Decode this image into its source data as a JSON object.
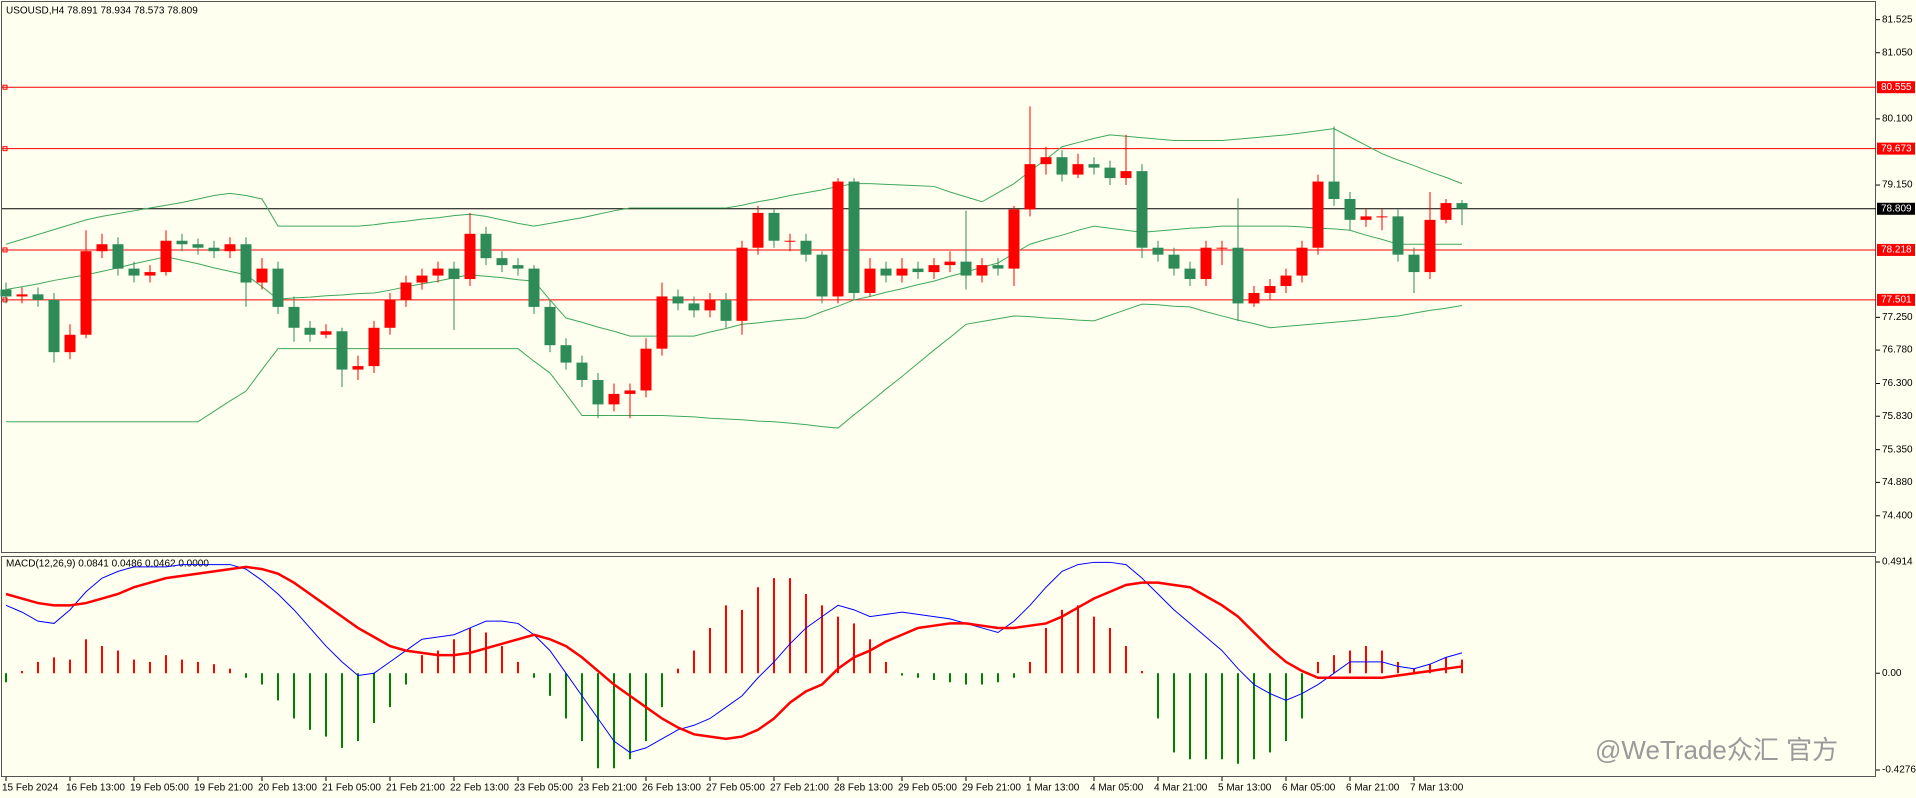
{
  "watermark": "@WeTrade众汇 官方",
  "chart_data": [
    {
      "type": "candlestick",
      "title": "USOUSD,H4  78.891 78.934 78.573 78.809",
      "categories": [
        "15 Feb 2024",
        null,
        null,
        null,
        "16 Feb 13:00",
        null,
        null,
        null,
        "19 Feb 05:00",
        null,
        null,
        null,
        "19 Feb 21:00",
        null,
        null,
        null,
        "20 Feb 13:00",
        null,
        null,
        null,
        "21 Feb 05:00",
        null,
        null,
        null,
        "21 Feb 21:00",
        null,
        null,
        null,
        "22 Feb 13:00",
        null,
        null,
        null,
        "23 Feb 05:00",
        null,
        null,
        null,
        "23 Feb 21:00",
        null,
        null,
        null,
        "26 Feb 13:00",
        null,
        null,
        null,
        "27 Feb 05:00",
        null,
        null,
        null,
        "27 Feb 21:00",
        null,
        null,
        null,
        "28 Feb 13:00",
        null,
        null,
        null,
        "29 Feb 05:00",
        null,
        null,
        null,
        "29 Feb 21:00",
        null,
        null,
        null,
        "1 Mar 13:00",
        null,
        null,
        null,
        "4 Mar 05:00",
        null,
        null,
        null,
        "4 Mar 21:00",
        null,
        null,
        null,
        "5 Mar 13:00",
        null,
        null,
        null,
        "6 Mar 05:00",
        null,
        null,
        null,
        "6 Mar 21:00",
        null,
        null,
        null,
        "7 Mar 13:00",
        null,
        null,
        null
      ],
      "open": [
        77.65,
        77.55,
        77.58,
        77.5,
        76.75,
        77.0,
        78.2,
        78.3,
        77.95,
        77.85,
        77.9,
        78.35,
        78.3,
        78.25,
        78.2,
        78.3,
        77.75,
        77.95,
        77.4,
        77.1,
        77.0,
        77.05,
        76.5,
        76.55,
        77.1,
        77.5,
        77.75,
        77.85,
        77.95,
        77.8,
        78.45,
        78.1,
        78.0,
        77.95,
        77.4,
        76.85,
        76.6,
        76.35,
        76.0,
        76.15,
        76.2,
        76.8,
        77.55,
        77.45,
        77.35,
        77.5,
        77.2,
        78.25,
        78.75,
        78.35,
        78.35,
        78.15,
        77.55,
        79.2,
        77.6,
        77.95,
        77.85,
        77.95,
        77.9,
        78.0,
        78.05,
        77.85,
        78.0,
        77.95,
        78.8,
        79.45,
        79.55,
        79.3,
        79.45,
        79.4,
        79.25,
        79.35,
        78.25,
        78.15,
        77.95,
        77.8,
        78.25,
        78.25,
        77.45,
        77.6,
        77.7,
        77.85,
        78.25,
        79.2,
        78.95,
        78.65,
        78.7,
        78.7,
        78.15,
        77.9,
        78.65,
        78.891
      ],
      "high": [
        77.75,
        77.68,
        77.68,
        77.6,
        77.15,
        78.5,
        78.45,
        78.4,
        78.05,
        78.0,
        78.5,
        78.45,
        78.38,
        78.35,
        78.4,
        78.4,
        78.1,
        78.05,
        77.55,
        77.2,
        77.15,
        77.1,
        76.7,
        77.2,
        77.6,
        77.85,
        77.95,
        78.05,
        78.05,
        78.75,
        78.55,
        78.2,
        78.1,
        78.0,
        77.5,
        76.95,
        76.7,
        76.45,
        76.3,
        76.3,
        76.95,
        77.75,
        77.65,
        77.55,
        77.6,
        77.6,
        78.35,
        78.85,
        78.8,
        78.45,
        78.45,
        78.2,
        79.25,
        79.25,
        78.1,
        78.05,
        78.1,
        78.05,
        78.1,
        78.2,
        78.78,
        78.1,
        78.1,
        78.85,
        80.28,
        79.7,
        79.65,
        79.6,
        79.55,
        79.5,
        79.87,
        79.45,
        78.35,
        78.25,
        78.05,
        78.35,
        78.35,
        78.96,
        77.7,
        77.8,
        77.95,
        78.35,
        79.3,
        79.99,
        79.05,
        78.8,
        78.8,
        78.8,
        78.25,
        79.05,
        78.95,
        78.934
      ],
      "low": [
        77.45,
        77.45,
        77.4,
        76.6,
        76.65,
        76.95,
        78.1,
        77.85,
        77.75,
        77.75,
        77.85,
        78.2,
        78.15,
        78.1,
        78.1,
        77.4,
        77.65,
        77.3,
        76.9,
        76.9,
        76.95,
        76.25,
        76.35,
        76.45,
        77.0,
        77.4,
        77.65,
        77.75,
        77.07,
        77.7,
        78.0,
        77.9,
        77.85,
        77.3,
        76.75,
        76.5,
        76.25,
        75.8,
        75.9,
        75.8,
        76.1,
        76.7,
        77.35,
        77.25,
        77.25,
        77.1,
        77.0,
        78.15,
        78.25,
        78.2,
        78.05,
        77.45,
        77.45,
        77.5,
        77.55,
        77.75,
        77.75,
        77.8,
        77.8,
        77.9,
        77.65,
        77.75,
        77.85,
        77.7,
        78.7,
        79.3,
        79.2,
        79.25,
        79.3,
        79.15,
        79.15,
        78.1,
        78.05,
        77.85,
        77.7,
        77.7,
        78.0,
        77.2,
        77.4,
        77.5,
        77.6,
        77.75,
        78.15,
        78.85,
        78.5,
        78.55,
        78.5,
        78.05,
        77.6,
        77.8,
        78.6,
        78.573
      ],
      "close": [
        77.55,
        77.58,
        77.5,
        76.75,
        77.0,
        78.2,
        78.3,
        77.95,
        77.85,
        77.9,
        78.35,
        78.3,
        78.25,
        78.2,
        78.3,
        77.75,
        77.95,
        77.4,
        77.1,
        77.0,
        77.05,
        76.5,
        76.55,
        77.1,
        77.5,
        77.75,
        77.85,
        77.95,
        77.8,
        78.45,
        78.1,
        78.0,
        77.95,
        77.4,
        76.85,
        76.6,
        76.35,
        76.0,
        76.15,
        76.2,
        76.8,
        77.55,
        77.45,
        77.35,
        77.5,
        77.2,
        78.25,
        78.75,
        78.35,
        78.35,
        78.15,
        77.55,
        79.2,
        77.6,
        77.95,
        77.85,
        77.95,
        77.9,
        78.0,
        78.05,
        77.85,
        78.0,
        77.95,
        78.8,
        79.45,
        79.55,
        79.3,
        79.45,
        79.4,
        79.25,
        79.35,
        78.25,
        78.15,
        77.95,
        77.8,
        78.25,
        78.25,
        77.45,
        77.6,
        77.7,
        77.85,
        78.25,
        79.2,
        78.95,
        78.65,
        78.7,
        78.7,
        78.15,
        77.9,
        78.65,
        78.891,
        78.809
      ],
      "up_color": "#ff0000",
      "down_color": "#2e8b57",
      "series": [
        {
          "color": "#3fa85c",
          "values": [
            78.3,
            78.37,
            78.44,
            78.51,
            78.58,
            78.65,
            78.7,
            78.74,
            78.78,
            78.82,
            78.86,
            78.9,
            78.95,
            79.0,
            79.03,
            79.0,
            78.95,
            78.56,
            78.56,
            78.56,
            78.56,
            78.56,
            78.56,
            78.58,
            78.61,
            78.63,
            78.66,
            78.68,
            78.71,
            78.73,
            78.7,
            78.65,
            78.6,
            78.56,
            78.6,
            78.64,
            78.68,
            78.73,
            78.78,
            78.82,
            78.82,
            78.82,
            78.82,
            78.82,
            78.82,
            78.82,
            78.86,
            78.91,
            78.95,
            79.0,
            79.04,
            79.08,
            79.13,
            79.17,
            79.17,
            79.16,
            79.15,
            79.14,
            79.13,
            79.05,
            78.98,
            78.91,
            79.04,
            79.17,
            79.35,
            79.52,
            79.7,
            79.76,
            79.82,
            79.87,
            79.85,
            79.83,
            79.81,
            79.79,
            79.79,
            79.79,
            79.79,
            79.81,
            79.83,
            79.85,
            79.87,
            79.9,
            79.93,
            79.96,
            79.84,
            79.72,
            79.6,
            79.51,
            79.43,
            79.34,
            79.26,
            79.17
          ]
        },
        {
          "color": "#3fa85c",
          "values": [
            77.65,
            77.69,
            77.73,
            77.78,
            77.82,
            77.86,
            77.91,
            77.96,
            78.02,
            78.07,
            78.12,
            78.07,
            78.02,
            77.96,
            77.91,
            77.86,
            77.69,
            77.51,
            77.53,
            77.54,
            77.56,
            77.57,
            77.59,
            77.6,
            77.64,
            77.69,
            77.73,
            77.77,
            77.82,
            77.86,
            77.84,
            77.82,
            77.79,
            77.77,
            77.5,
            77.24,
            77.18,
            77.11,
            77.05,
            76.98,
            76.98,
            76.98,
            76.98,
            76.98,
            77.04,
            77.09,
            77.15,
            77.17,
            77.2,
            77.22,
            77.24,
            77.33,
            77.41,
            77.5,
            77.55,
            77.61,
            77.66,
            77.72,
            77.77,
            77.84,
            77.9,
            77.97,
            78.03,
            78.17,
            78.3,
            78.37,
            78.43,
            78.5,
            78.56,
            78.53,
            78.5,
            78.47,
            78.49,
            78.51,
            78.53,
            78.54,
            78.56,
            78.56,
            78.56,
            78.56,
            78.56,
            78.55,
            78.53,
            78.52,
            78.5,
            78.43,
            78.37,
            78.3,
            78.3,
            78.3,
            78.3,
            78.3
          ]
        },
        {
          "color": "#3fa85c",
          "values": [
            75.75,
            75.75,
            75.75,
            75.75,
            75.75,
            75.75,
            75.75,
            75.75,
            75.75,
            75.75,
            75.75,
            75.75,
            75.75,
            75.9,
            76.05,
            76.19,
            76.5,
            76.8,
            76.8,
            76.8,
            76.8,
            76.8,
            76.8,
            76.8,
            76.8,
            76.8,
            76.8,
            76.8,
            76.8,
            76.8,
            76.8,
            76.8,
            76.8,
            76.62,
            76.45,
            76.15,
            75.84,
            75.84,
            75.84,
            75.84,
            75.84,
            75.84,
            75.83,
            75.82,
            75.8,
            75.79,
            75.78,
            75.76,
            75.75,
            75.73,
            75.71,
            75.68,
            75.66,
            75.85,
            76.03,
            76.22,
            76.4,
            76.59,
            76.78,
            76.96,
            77.15,
            77.19,
            77.23,
            77.27,
            77.26,
            77.24,
            77.23,
            77.21,
            77.2,
            77.28,
            77.36,
            77.44,
            77.43,
            77.41,
            77.4,
            77.33,
            77.27,
            77.21,
            77.16,
            77.1,
            77.12,
            77.14,
            77.16,
            77.18,
            77.2,
            77.22,
            77.25,
            77.27,
            77.31,
            77.35,
            77.38,
            77.42
          ]
        }
      ],
      "hlines": [
        80.555,
        79.673,
        78.218,
        77.501
      ],
      "hline_color": "#ff0000",
      "price_line": 78.809,
      "price_line_color": "#000000",
      "ylim": [
        73.88,
        81.75
      ],
      "yticks": [
        81.525,
        {
          "value": 81.05,
          "label": "81.050"
        },
        {
          "value": 80.1,
          "label": "80.100"
        },
        {
          "value": 79.15,
          "label": "79.150"
        },
        {
          "value": 77.25,
          "label": "77.250"
        },
        {
          "value": 76.78,
          "label": "76.780"
        },
        {
          "value": 76.3,
          "label": "76.300"
        },
        {
          "value": 75.83,
          "label": "75.830"
        },
        {
          "value": 75.35,
          "label": "75.350"
        },
        {
          "value": 74.88,
          "label": "74.880"
        },
        {
          "value": 74.4,
          "label": "74.400"
        }
      ]
    },
    {
      "type": "macd",
      "title": "MACD(12,26,9) 0.0841 0.0486 0.0462 0.0000",
      "histogram": [
        -0.04,
        0.01,
        0.05,
        0.07,
        0.06,
        0.15,
        0.12,
        0.1,
        0.06,
        0.05,
        0.08,
        0.06,
        0.05,
        0.04,
        0.02,
        -0.02,
        -0.05,
        -0.12,
        -0.2,
        -0.25,
        -0.28,
        -0.33,
        -0.3,
        -0.22,
        -0.15,
        -0.05,
        0.08,
        0.1,
        0.15,
        0.2,
        0.18,
        0.12,
        0.05,
        -0.02,
        -0.1,
        -0.2,
        -0.3,
        -0.42,
        -0.42,
        -0.38,
        -0.3,
        -0.15,
        0.02,
        0.1,
        0.2,
        0.3,
        0.28,
        0.38,
        0.42,
        0.42,
        0.35,
        0.3,
        0.25,
        0.22,
        0.15,
        0.05,
        -0.01,
        -0.02,
        -0.03,
        -0.04,
        -0.05,
        -0.05,
        -0.04,
        -0.02,
        0.05,
        0.2,
        0.28,
        0.3,
        0.25,
        0.2,
        0.12,
        0.01,
        -0.2,
        -0.35,
        -0.38,
        -0.38,
        -0.38,
        -0.4,
        -0.38,
        -0.35,
        -0.3,
        -0.2,
        0.05,
        0.08,
        0.1,
        0.12,
        0.1,
        0.05,
        0.02,
        0.04,
        0.07,
        0.06
      ],
      "up_color": "#ff0000",
      "down_color": "#008000",
      "series": [
        {
          "color": "#0000ff",
          "values": [
            0.3,
            0.27,
            0.23,
            0.22,
            0.28,
            0.36,
            0.42,
            0.45,
            0.47,
            0.47,
            0.47,
            0.48,
            0.48,
            0.48,
            0.48,
            0.46,
            0.41,
            0.35,
            0.28,
            0.2,
            0.12,
            0.05,
            -0.01,
            0.0,
            0.05,
            0.1,
            0.15,
            0.16,
            0.17,
            0.2,
            0.23,
            0.23,
            0.22,
            0.17,
            0.1,
            0.0,
            -0.1,
            -0.2,
            -0.3,
            -0.35,
            -0.33,
            -0.29,
            -0.25,
            -0.23,
            -0.2,
            -0.15,
            -0.1,
            -0.02,
            0.05,
            0.13,
            0.2,
            0.25,
            0.3,
            0.28,
            0.25,
            0.26,
            0.27,
            0.26,
            0.25,
            0.24,
            0.22,
            0.2,
            0.18,
            0.23,
            0.3,
            0.38,
            0.45,
            0.48,
            0.49,
            0.49,
            0.48,
            0.42,
            0.35,
            0.28,
            0.22,
            0.16,
            0.1,
            0.02,
            -0.05,
            -0.09,
            -0.12,
            -0.09,
            -0.05,
            0.0,
            0.05,
            0.05,
            0.05,
            0.03,
            0.02,
            0.04,
            0.07,
            0.09
          ]
        },
        {
          "color": "#ff0000",
          "values": [
            0.35,
            0.33,
            0.31,
            0.3,
            0.3,
            0.31,
            0.33,
            0.35,
            0.38,
            0.4,
            0.42,
            0.43,
            0.44,
            0.45,
            0.46,
            0.47,
            0.46,
            0.44,
            0.4,
            0.35,
            0.3,
            0.25,
            0.2,
            0.16,
            0.12,
            0.1,
            0.09,
            0.08,
            0.08,
            0.09,
            0.11,
            0.13,
            0.15,
            0.17,
            0.15,
            0.12,
            0.07,
            0.01,
            -0.05,
            -0.1,
            -0.15,
            -0.2,
            -0.24,
            -0.27,
            -0.28,
            -0.29,
            -0.28,
            -0.25,
            -0.2,
            -0.13,
            -0.08,
            -0.05,
            0.02,
            0.07,
            0.1,
            0.14,
            0.17,
            0.2,
            0.21,
            0.22,
            0.22,
            0.21,
            0.2,
            0.2,
            0.21,
            0.22,
            0.25,
            0.29,
            0.33,
            0.36,
            0.39,
            0.4,
            0.4,
            0.39,
            0.38,
            0.34,
            0.3,
            0.25,
            0.18,
            0.11,
            0.05,
            0.01,
            -0.02,
            -0.02,
            -0.02,
            -0.02,
            -0.02,
            -0.01,
            0.0,
            0.01,
            0.02,
            0.03
          ]
        }
      ],
      "ylim": [
        -0.4276,
        0.4914
      ],
      "yticks": [
        0.4914,
        {
          "value": 0,
          "label": "0.00"
        },
        -0.4276
      ]
    }
  ]
}
